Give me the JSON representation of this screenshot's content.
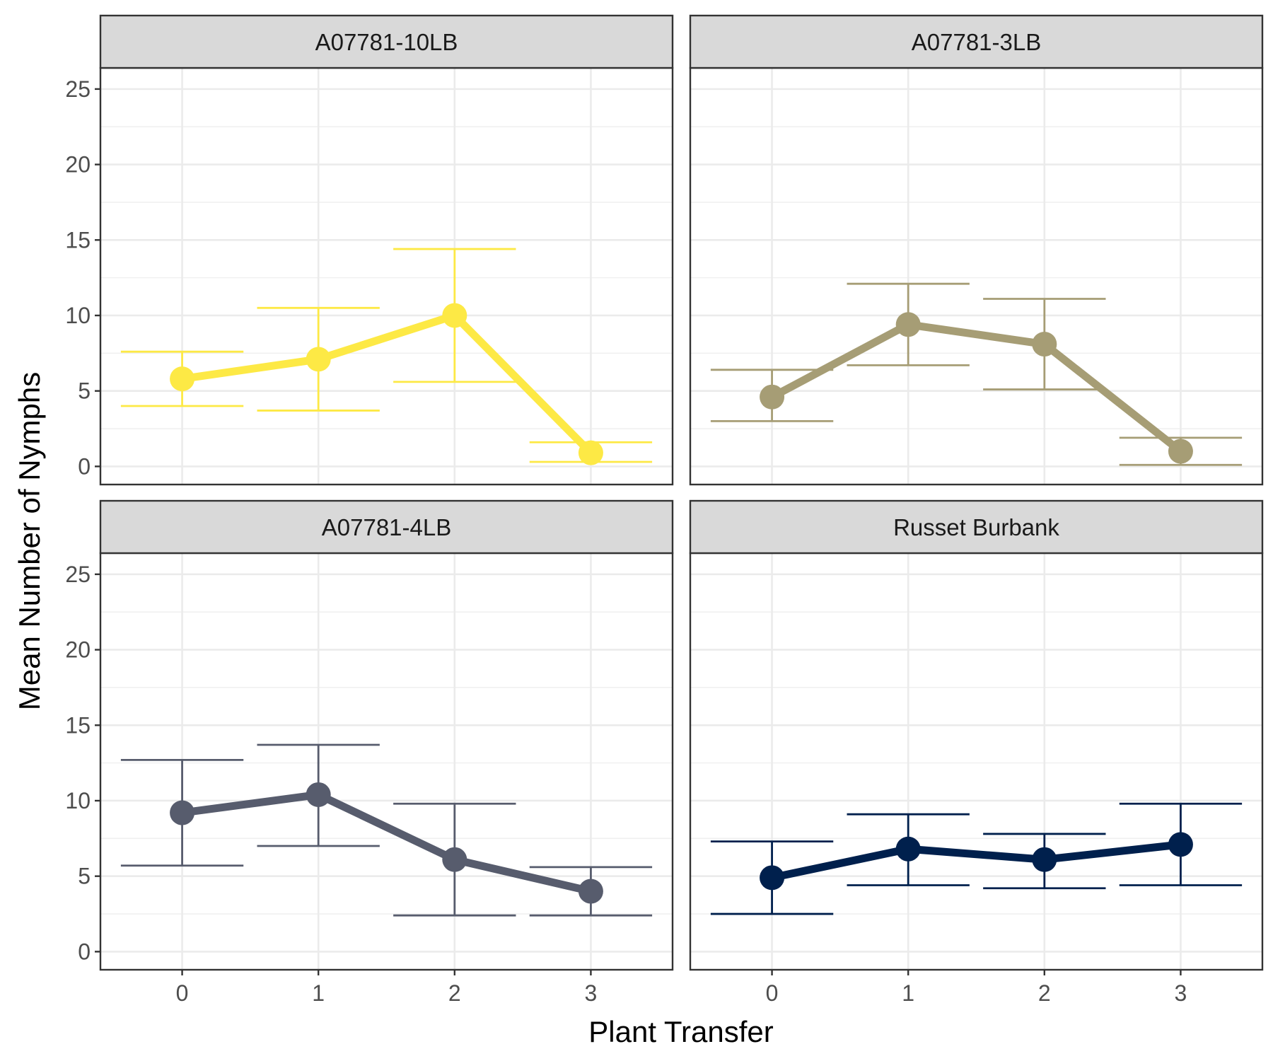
{
  "chart_data": {
    "type": "line",
    "xlabel": "Plant Transfer",
    "ylabel": "Mean Number of Nymphs",
    "x": [
      0,
      1,
      2,
      3
    ],
    "xlim": [
      -0.6,
      3.6
    ],
    "ylim": [
      -1.2,
      26.4
    ],
    "yticks": [
      0,
      5,
      10,
      15,
      20,
      25
    ],
    "grid": true,
    "legend": "none",
    "panels": [
      {
        "name": "A07781-10LB",
        "color": "#fde945",
        "mean": [
          5.8,
          7.1,
          10.0,
          0.9
        ],
        "lower": [
          4.0,
          3.7,
          5.6,
          0.3
        ],
        "upper": [
          7.6,
          10.5,
          14.4,
          1.6
        ]
      },
      {
        "name": "A07781-3LB",
        "color": "#a69d75",
        "mean": [
          4.6,
          9.4,
          8.1,
          1.0
        ],
        "lower": [
          3.0,
          6.7,
          5.1,
          0.1
        ],
        "upper": [
          6.4,
          12.1,
          11.1,
          1.9
        ]
      },
      {
        "name": "A07781-4LB",
        "color": "#575c6d",
        "mean": [
          9.2,
          10.4,
          6.1,
          4.0
        ],
        "lower": [
          5.7,
          7.0,
          2.4,
          2.4
        ],
        "upper": [
          12.7,
          13.7,
          9.8,
          5.6
        ]
      },
      {
        "name": "Russet Burbank",
        "color": "#00204d",
        "mean": [
          4.9,
          6.8,
          6.1,
          7.1
        ],
        "lower": [
          2.5,
          4.4,
          4.2,
          4.4
        ],
        "upper": [
          7.3,
          9.1,
          7.8,
          9.8
        ]
      }
    ]
  }
}
